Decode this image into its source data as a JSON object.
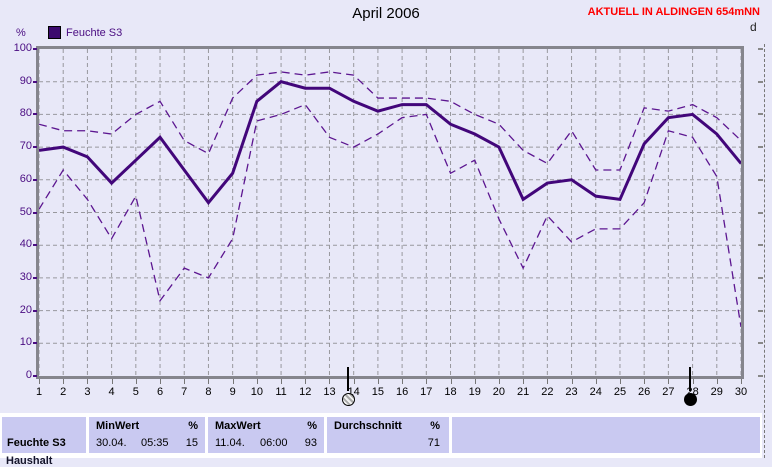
{
  "title": "April 2006",
  "status_banner": "AKTUELL IN ALDINGEN 654mNN",
  "legend": {
    "label": "Feuchte S3"
  },
  "axes": {
    "y_unit": "%",
    "right_axis_label": "d",
    "y_ticks": [
      100,
      90,
      80,
      70,
      60,
      50,
      40,
      30,
      20,
      10,
      0
    ]
  },
  "chart_data": {
    "type": "line",
    "title": "April 2006",
    "ylabel": "%",
    "ylim": [
      0,
      100
    ],
    "grid": true,
    "legend_position": "top-left",
    "legend_entries": [
      "Feuchte S3"
    ],
    "x": [
      1,
      2,
      3,
      4,
      5,
      6,
      7,
      8,
      9,
      10,
      11,
      12,
      13,
      14,
      15,
      16,
      17,
      18,
      19,
      20,
      21,
      22,
      23,
      24,
      25,
      26,
      27,
      28,
      29,
      30
    ],
    "series": [
      {
        "id": "max",
        "style": "dashed",
        "values": [
          77,
          75,
          75,
          74,
          80,
          84,
          72,
          68,
          85,
          92,
          93,
          92,
          93,
          92,
          85,
          85,
          85,
          84,
          80,
          77,
          69,
          65,
          75,
          63,
          63,
          82,
          81,
          83,
          79,
          72
        ]
      },
      {
        "id": "min",
        "style": "dashed",
        "values": [
          51,
          63,
          54,
          42,
          55,
          23,
          33,
          30,
          42,
          78,
          80,
          83,
          73,
          70,
          74,
          79,
          80,
          62,
          66,
          48,
          33,
          49,
          41,
          45,
          45,
          53,
          75,
          73,
          61,
          15
        ]
      },
      {
        "id": "mean",
        "style": "solid",
        "values": [
          69,
          70,
          67,
          59,
          66,
          73,
          63,
          53,
          62,
          84,
          90,
          88,
          88,
          84,
          81,
          83,
          83,
          77,
          74,
          70,
          54,
          59,
          60,
          55,
          54,
          71,
          79,
          80,
          74,
          65
        ]
      }
    ],
    "markers": [
      {
        "day": 13.75,
        "type": "full-moon"
      },
      {
        "day": 27.9,
        "type": "new-moon"
      }
    ]
  },
  "table": {
    "sensor": "Feuchte S3",
    "sensor_line2": "Haushalt",
    "min": {
      "header": "MinWert",
      "unit": "%",
      "date": "30.04.",
      "time": "05:35",
      "value": "15"
    },
    "max": {
      "header": "MaxWert",
      "unit": "%",
      "date": "11.04.",
      "time": "06:00",
      "value": "93"
    },
    "avg": {
      "header": "Durchschnitt",
      "unit": "%",
      "value": "71"
    }
  },
  "colors": {
    "background": "#e8e8f8",
    "line_solid": "#42067a",
    "line_dashed": "#5c1690",
    "grid": "#98989e",
    "frame": "#85858d",
    "axis_label_purple": "#4a0d82",
    "banner_red": "#ff0000",
    "table_cell": "#c9c9f1"
  }
}
